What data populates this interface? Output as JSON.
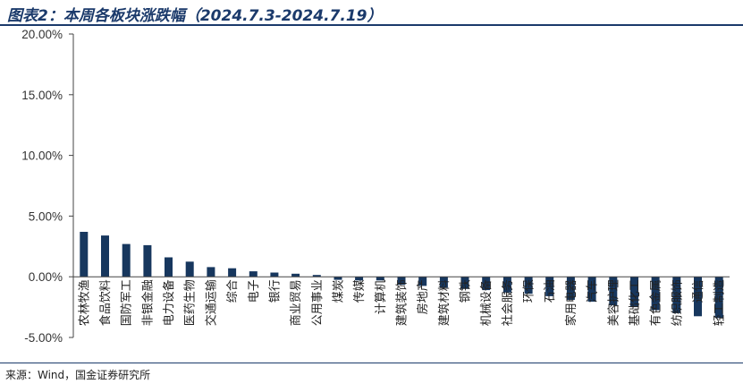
{
  "header": {
    "title": "图表2：本周各板块涨跌幅（2024.7.3-2024.7.19）"
  },
  "footer": {
    "source": "来源：Wind，国金证券研究所"
  },
  "colors": {
    "bar": "#17375e",
    "rule": "#1b3a6b",
    "axis": "#444444"
  },
  "chart_data": {
    "type": "bar",
    "title": "",
    "xlabel": "",
    "ylabel": "",
    "ylim": [
      -5,
      20
    ],
    "yticks": [
      20,
      15,
      10,
      5,
      0,
      -5
    ],
    "ytick_labels": [
      "20.00%",
      "15.00%",
      "10.00%",
      "5.00%",
      "0.00%",
      "-5.00%"
    ],
    "grid": false,
    "legend": "none",
    "categories": [
      "农林牧渔",
      "食品饮料",
      "国防军工",
      "非银金融",
      "电力设备",
      "医药生物",
      "交通运输",
      "综合",
      "电子",
      "银行",
      "商业贸易",
      "公用事业",
      "煤炭",
      "传媒",
      "计算机",
      "建筑装饰",
      "房地产",
      "建筑材料",
      "钢铁",
      "机械设备",
      "社会服务",
      "环保",
      "石油",
      "家用电器",
      "汽车",
      "美容护理",
      "基础化工",
      "有色金属",
      "纺织服饰",
      "通信",
      "轻工制造"
    ],
    "values": [
      3.7,
      3.4,
      2.7,
      2.6,
      1.6,
      1.25,
      0.8,
      0.7,
      0.45,
      0.35,
      0.25,
      0.15,
      -0.25,
      -0.3,
      -0.3,
      -0.65,
      -0.75,
      -0.9,
      -1.0,
      -1.1,
      -1.3,
      -1.4,
      -1.6,
      -1.9,
      -2.05,
      -2.35,
      -2.5,
      -2.75,
      -3.0,
      -3.25,
      -3.4
    ]
  }
}
